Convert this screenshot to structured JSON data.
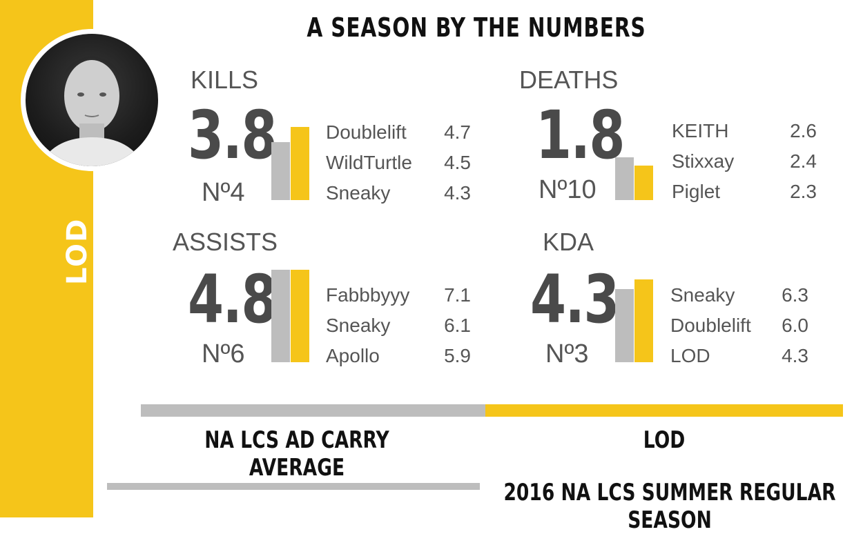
{
  "title": "A SEASON BY THE NUMBERS",
  "player_name": "LOD",
  "colors": {
    "accent": "#f5c51a",
    "average": "#bdbdbd"
  },
  "legend": {
    "average": "NA LCS AD CARRY AVERAGE",
    "player": "LOD"
  },
  "footer": "2016 NA LCS SUMMER REGULAR SEASON",
  "panels": [
    {
      "label": "KILLS",
      "value": "3.8",
      "rank": "Nº4",
      "top": [
        {
          "name": "Doublelift",
          "value": "4.7"
        },
        {
          "name": "WildTurtle",
          "value": "4.5"
        },
        {
          "name": "Sneaky",
          "value": "4.3"
        }
      ]
    },
    {
      "label": "DEATHS",
      "value": "1.8",
      "rank": "Nº10",
      "top": [
        {
          "name": "KEITH",
          "value": "2.6"
        },
        {
          "name": "Stixxay",
          "value": "2.4"
        },
        {
          "name": "Piglet",
          "value": "2.3"
        }
      ]
    },
    {
      "label": "ASSISTS",
      "value": "4.8",
      "rank": "Nº6",
      "top": [
        {
          "name": "Fabbbyyy",
          "value": "7.1"
        },
        {
          "name": "Sneaky",
          "value": "6.1"
        },
        {
          "name": "Apollo",
          "value": "5.9"
        }
      ]
    },
    {
      "label": "KDA",
      "value": "4.3",
      "rank": "Nº3",
      "top": [
        {
          "name": "Sneaky",
          "value": "6.3"
        },
        {
          "name": "Doublelift",
          "value": "6.0"
        },
        {
          "name": "LOD",
          "value": "4.3"
        }
      ]
    }
  ],
  "chart_data": [
    {
      "type": "bar",
      "title": "KILLS",
      "categories": [
        "NA LCS AD CARRY AVERAGE",
        "LOD"
      ],
      "values": [
        3.0,
        3.8
      ]
    },
    {
      "type": "bar",
      "title": "DEATHS",
      "categories": [
        "NA LCS AD CARRY AVERAGE",
        "LOD"
      ],
      "values": [
        2.2,
        1.8
      ]
    },
    {
      "type": "bar",
      "title": "ASSISTS",
      "categories": [
        "NA LCS AD CARRY AVERAGE",
        "LOD"
      ],
      "values": [
        4.8,
        4.8
      ]
    },
    {
      "type": "bar",
      "title": "KDA",
      "categories": [
        "NA LCS AD CARRY AVERAGE",
        "LOD"
      ],
      "values": [
        3.8,
        4.3
      ]
    }
  ]
}
